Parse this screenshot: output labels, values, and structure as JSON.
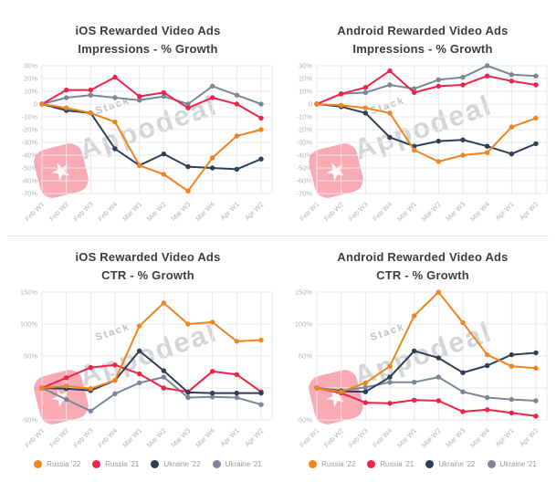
{
  "page": {
    "background": "#ffffff"
  },
  "colors": {
    "russia22": "#F0841F",
    "russia21": "#EF2347",
    "ukraine22": "#2D3E58",
    "ukraine21": "#7A8799",
    "grid": "#E9E9E9",
    "tick_text": "#B4B4B4",
    "title_text": "#3D3D3D",
    "legend_text": "#9B9B9B",
    "divider": "#E6E6E6",
    "watermark_red": "#F4556C",
    "watermark_text": "#A8ADB4"
  },
  "watermark": {
    "small_text": "Stack",
    "big_text": "Appodeal",
    "logo_icon": "appodeal-star-logo"
  },
  "legend": {
    "items": [
      {
        "label": "Russia '22",
        "color_key": "russia22"
      },
      {
        "label": "Russia '21",
        "color_key": "russia21"
      },
      {
        "label": "Ukraine '22",
        "color_key": "ukraine22"
      },
      {
        "label": "Ukraine '21",
        "color_key": "ukraine21"
      }
    ]
  },
  "chart_data": [
    {
      "type": "line",
      "title_line1": "iOS Rewarded Video Ads",
      "title_line2": "Impressions - % Growth",
      "categories": [
        "Feb W1",
        "Feb W2",
        "Feb W3",
        "Feb W4",
        "Mar W1",
        "Mar W2",
        "Mar W3",
        "Mar W4",
        "Apr W1",
        "Apr W2"
      ],
      "ylim": [
        -70,
        30
      ],
      "grid": true,
      "legend": false,
      "y_ticks": [
        {
          "label": "30%",
          "value": 30
        },
        {
          "label": "20%",
          "value": 20
        },
        {
          "label": "10%",
          "value": 10
        },
        {
          "label": "0",
          "value": 0
        },
        {
          "label": "-10%",
          "value": -10
        },
        {
          "label": "-20%",
          "value": -20
        },
        {
          "label": "-30%",
          "value": -30
        },
        {
          "label": "-40%",
          "value": -40
        },
        {
          "label": "-50%",
          "value": -50
        },
        {
          "label": "-60%",
          "value": -60
        },
        {
          "label": "-70%",
          "value": -70
        }
      ],
      "series": [
        {
          "name": "Russia '22",
          "color_key": "russia22",
          "values": [
            0,
            -3,
            -7,
            -14,
            -48,
            -55,
            -68,
            -42,
            -25,
            -20
          ]
        },
        {
          "name": "Russia '21",
          "color_key": "russia21",
          "values": [
            0,
            11,
            11,
            21,
            6,
            9,
            -3,
            5,
            0,
            -11
          ]
        },
        {
          "name": "Ukraine '22",
          "color_key": "ukraine22",
          "values": [
            0,
            -5,
            -7,
            -35,
            -48,
            -39,
            -49,
            -50,
            -51,
            -43
          ]
        },
        {
          "name": "Ukraine '21",
          "color_key": "ukraine21",
          "values": [
            0,
            5,
            7,
            5,
            3,
            6,
            0,
            14,
            7,
            0
          ]
        }
      ]
    },
    {
      "type": "line",
      "title_line1": "Android Rewarded Video Ads",
      "title_line2": "Impressions - % Growth",
      "categories": [
        "Feb W1",
        "Feb W2",
        "Feb W3",
        "Feb W4",
        "Mar W1",
        "Mar W2",
        "Mar W3",
        "Mar W4",
        "Apr W1",
        "Apr W2"
      ],
      "ylim": [
        -70,
        30
      ],
      "grid": true,
      "legend": false,
      "y_ticks": [
        {
          "label": "30%",
          "value": 30
        },
        {
          "label": "20%",
          "value": 20
        },
        {
          "label": "10%",
          "value": 10
        },
        {
          "label": "0",
          "value": 0
        },
        {
          "label": "-10%",
          "value": -10
        },
        {
          "label": "-20%",
          "value": -20
        },
        {
          "label": "-30%",
          "value": -30
        },
        {
          "label": "-40%",
          "value": -40
        },
        {
          "label": "-50%",
          "value": -50
        },
        {
          "label": "-60%",
          "value": -60
        },
        {
          "label": "-70%",
          "value": -70
        }
      ],
      "series": [
        {
          "name": "Russia '22",
          "color_key": "russia22",
          "values": [
            0,
            -1,
            -3,
            -7,
            -36,
            -45,
            -40,
            -38,
            -18,
            -11
          ]
        },
        {
          "name": "Russia '21",
          "color_key": "russia21",
          "values": [
            0,
            8,
            13,
            26,
            9,
            14,
            15,
            22,
            18,
            15
          ]
        },
        {
          "name": "Ukraine '22",
          "color_key": "ukraine22",
          "values": [
            0,
            -2,
            -7,
            -26,
            -33,
            -29,
            -28,
            -33,
            -39,
            -31
          ]
        },
        {
          "name": "Ukraine '21",
          "color_key": "ukraine21",
          "values": [
            0,
            8,
            9,
            15,
            12,
            19,
            21,
            30,
            23,
            22
          ]
        }
      ]
    },
    {
      "type": "line",
      "title_line1": "iOS Rewarded Video Ads",
      "title_line2": "CTR - % Growth",
      "categories": [
        "Feb W1",
        "Feb W2",
        "Feb W3",
        "Feb W4",
        "Mar W1",
        "Mar W2",
        "Mar W3",
        "Mar W4",
        "Apr W1",
        "Apr W2"
      ],
      "ylim": [
        -50,
        150
      ],
      "grid": true,
      "legend": true,
      "y_ticks": [
        {
          "label": "150%",
          "value": 150
        },
        {
          "label": "100%",
          "value": 100
        },
        {
          "label": "50%",
          "value": 50
        },
        {
          "label": "0",
          "value": 0
        },
        {
          "label": "-50%",
          "value": -50
        }
      ],
      "series": [
        {
          "name": "Russia '22",
          "color_key": "russia22",
          "values": [
            0,
            3,
            -1,
            12,
            97,
            133,
            100,
            103,
            73,
            75
          ]
        },
        {
          "name": "Russia '21",
          "color_key": "russia21",
          "values": [
            0,
            16,
            32,
            36,
            22,
            0,
            -6,
            26,
            21,
            -6
          ]
        },
        {
          "name": "Ukraine '22",
          "color_key": "ukraine22",
          "values": [
            0,
            -1,
            -4,
            12,
            58,
            27,
            -7,
            -8,
            -8,
            -8
          ]
        },
        {
          "name": "Ukraine '21",
          "color_key": "ukraine21",
          "values": [
            0,
            -18,
            -36,
            -9,
            8,
            17,
            -15,
            -14,
            -15,
            -26
          ]
        }
      ]
    },
    {
      "type": "line",
      "title_line1": "Android Rewarded Video Ads",
      "title_line2": "CTR - % Growth",
      "categories": [
        "Feb W1",
        "Feb W2",
        "Feb W3",
        "Feb W4",
        "Mar W1",
        "Mar W2",
        "Mar W3",
        "Mar W4",
        "Apr W1",
        "Apr W2"
      ],
      "ylim": [
        -50,
        150
      ],
      "grid": true,
      "legend": true,
      "y_ticks": [
        {
          "label": "150%",
          "value": 150
        },
        {
          "label": "100%",
          "value": 100
        },
        {
          "label": "50%",
          "value": 50
        },
        {
          "label": "0",
          "value": 0
        },
        {
          "label": "-50%",
          "value": -50
        }
      ],
      "series": [
        {
          "name": "Russia '22",
          "color_key": "russia22",
          "values": [
            0,
            -6,
            8,
            34,
            113,
            150,
            102,
            52,
            34,
            31
          ]
        },
        {
          "name": "Russia '21",
          "color_key": "russia21",
          "values": [
            0,
            -8,
            -23,
            -24,
            -19,
            -20,
            -37,
            -34,
            -39,
            -44
          ]
        },
        {
          "name": "Ukraine '22",
          "color_key": "ukraine22",
          "values": [
            0,
            -5,
            -6,
            17,
            58,
            47,
            24,
            35,
            52,
            55
          ]
        },
        {
          "name": "Ukraine '21",
          "color_key": "ukraine21",
          "values": [
            0,
            -4,
            1,
            9,
            9,
            17,
            -6,
            -15,
            -18,
            -20
          ]
        }
      ]
    }
  ]
}
